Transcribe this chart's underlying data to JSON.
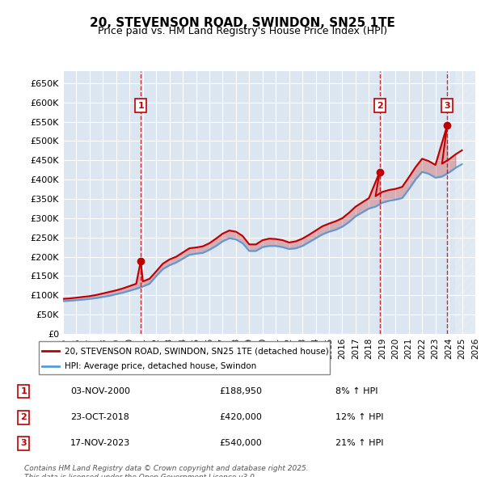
{
  "title": "20, STEVENSON ROAD, SWINDON, SN25 1TE",
  "subtitle": "Price paid vs. HM Land Registry's House Price Index (HPI)",
  "ylim": [
    0,
    680000
  ],
  "yticks": [
    0,
    50000,
    100000,
    150000,
    200000,
    250000,
    300000,
    350000,
    400000,
    450000,
    500000,
    550000,
    600000,
    650000
  ],
  "background_color": "#ffffff",
  "plot_bg_color": "#dce6f1",
  "grid_color": "#ffffff",
  "hpi_color": "#5b9bd5",
  "price_color": "#c00000",
  "sale_marker_color": "#c00000",
  "annotation_box_color": "#c00000",
  "legend_label_price": "20, STEVENSON ROAD, SWINDON, SN25 1TE (detached house)",
  "legend_label_hpi": "HPI: Average price, detached house, Swindon",
  "footer": "Contains HM Land Registry data © Crown copyright and database right 2025.\nThis data is licensed under the Open Government Licence v3.0.",
  "sale_dates": [
    "03-NOV-2000",
    "23-OCT-2018",
    "17-NOV-2023"
  ],
  "sale_prices": [
    188950,
    420000,
    540000
  ],
  "sale_pct": [
    "8%",
    "12%",
    "21%"
  ],
  "sale_years": [
    2000.84,
    2018.81,
    2023.88
  ],
  "hpi_years": [
    1995,
    1995.5,
    1996,
    1996.5,
    1997,
    1997.5,
    1998,
    1998.5,
    1999,
    1999.5,
    2000,
    2000.5,
    2001,
    2001.5,
    2002,
    2002.5,
    2003,
    2003.5,
    2004,
    2004.5,
    2005,
    2005.5,
    2006,
    2006.5,
    2007,
    2007.5,
    2008,
    2008.5,
    2009,
    2009.5,
    2010,
    2010.5,
    2011,
    2011.5,
    2012,
    2012.5,
    2013,
    2013.5,
    2014,
    2014.5,
    2015,
    2015.5,
    2016,
    2016.5,
    2017,
    2017.5,
    2018,
    2018.5,
    2019,
    2019.5,
    2020,
    2020.5,
    2021,
    2021.5,
    2022,
    2022.5,
    2023,
    2023.5,
    2024,
    2024.5,
    2025
  ],
  "hpi_values": [
    85000,
    86000,
    87500,
    89000,
    91000,
    93000,
    96000,
    99000,
    103000,
    107000,
    112000,
    117000,
    123000,
    130000,
    150000,
    168000,
    178000,
    185000,
    195000,
    205000,
    208000,
    210000,
    218000,
    228000,
    240000,
    248000,
    245000,
    235000,
    215000,
    215000,
    225000,
    228000,
    228000,
    225000,
    220000,
    222000,
    228000,
    238000,
    248000,
    258000,
    265000,
    270000,
    278000,
    290000,
    305000,
    315000,
    325000,
    330000,
    340000,
    345000,
    348000,
    352000,
    375000,
    400000,
    420000,
    415000,
    405000,
    408000,
    418000,
    430000,
    440000
  ],
  "price_years": [
    1995,
    1995.5,
    1996,
    1996.5,
    1997,
    1997.5,
    1998,
    1998.5,
    1999,
    1999.5,
    2000,
    2000.5,
    2000.84,
    2001,
    2001.5,
    2002,
    2002.5,
    2003,
    2003.5,
    2004,
    2004.5,
    2005,
    2005.5,
    2006,
    2006.5,
    2007,
    2007.5,
    2008,
    2008.5,
    2009,
    2009.5,
    2010,
    2010.5,
    2011,
    2011.5,
    2012,
    2012.5,
    2013,
    2013.5,
    2014,
    2014.5,
    2015,
    2015.5,
    2016,
    2016.5,
    2017,
    2017.5,
    2018,
    2018.81,
    2018.5,
    2019,
    2019.5,
    2020,
    2020.5,
    2021,
    2021.5,
    2022,
    2022.5,
    2023,
    2023.88,
    2023.5,
    2024,
    2024.5,
    2025
  ],
  "price_values": [
    91000,
    92000,
    94000,
    96000,
    98000,
    101000,
    105000,
    109000,
    113000,
    118000,
    124000,
    130000,
    188950,
    136000,
    143000,
    162000,
    182000,
    193000,
    200000,
    211000,
    222000,
    224000,
    227000,
    235000,
    247000,
    260000,
    268000,
    265000,
    254000,
    232000,
    232000,
    243000,
    247000,
    246000,
    243000,
    237000,
    240000,
    247000,
    257000,
    268000,
    279000,
    286000,
    292000,
    300000,
    314000,
    330000,
    341000,
    352000,
    420000,
    357000,
    368000,
    373000,
    376000,
    381000,
    406000,
    432000,
    454000,
    448000,
    438000,
    540000,
    441000,
    452000,
    465000,
    476000
  ],
  "xmin": 1995,
  "xmax": 2026,
  "xticks": [
    1995,
    1996,
    1997,
    1998,
    1999,
    2000,
    2001,
    2002,
    2003,
    2004,
    2005,
    2006,
    2007,
    2008,
    2009,
    2010,
    2011,
    2012,
    2013,
    2014,
    2015,
    2016,
    2017,
    2018,
    2019,
    2020,
    2021,
    2022,
    2023,
    2024,
    2025,
    2026
  ],
  "hatch_color": "#c0c0c0",
  "hatch_start": 2024.5
}
